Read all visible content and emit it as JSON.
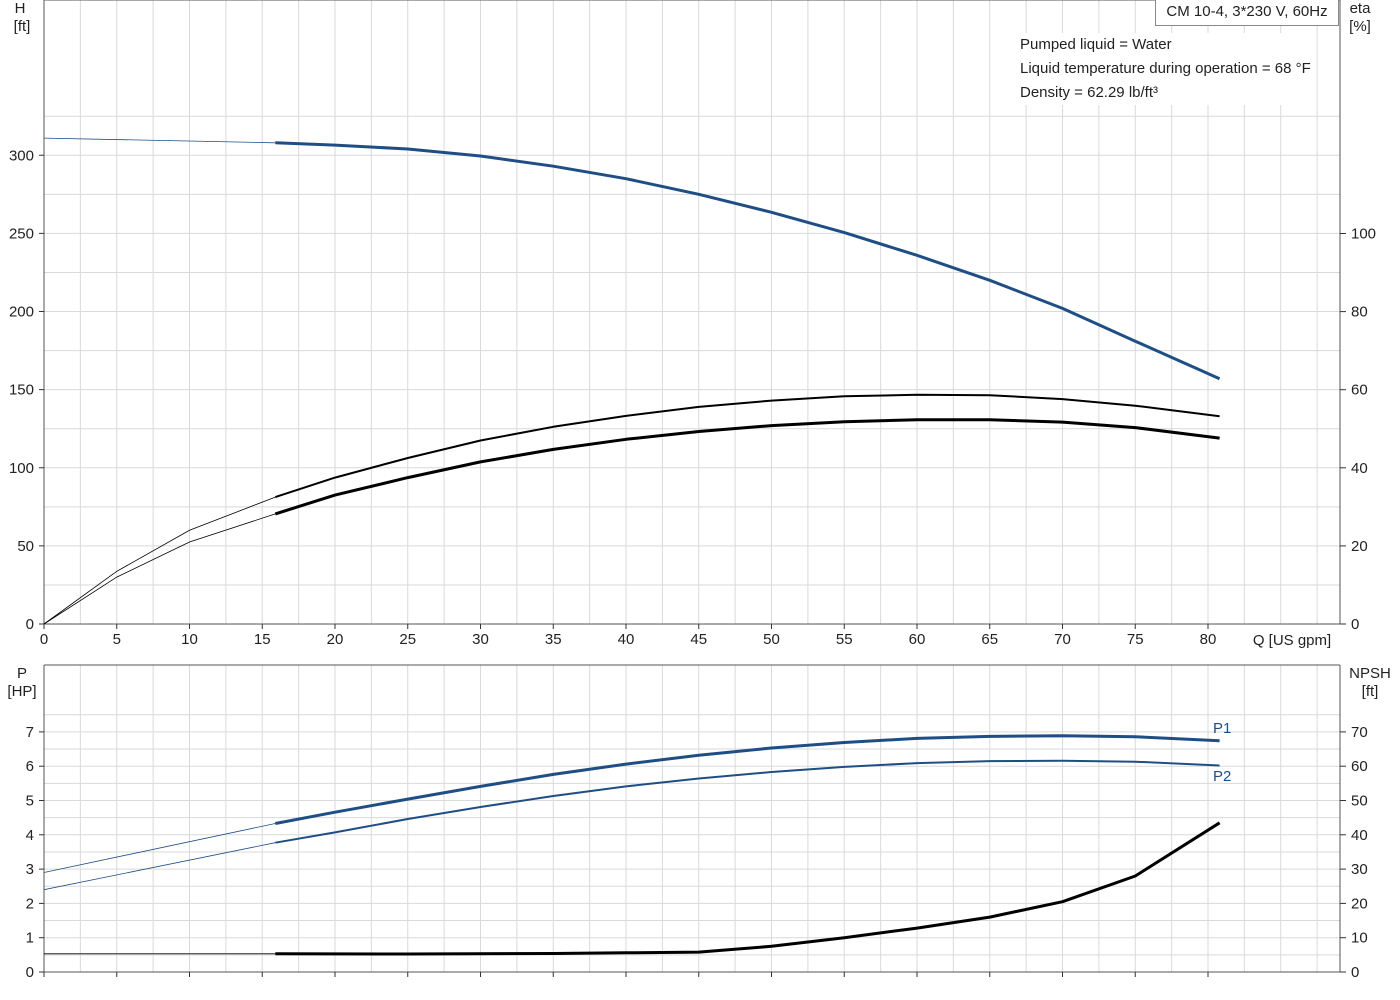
{
  "chart_data": [
    {
      "type": "line",
      "title": "CM 10-4, 3*230 V, 60Hz",
      "annotations": [
        "Pumped liquid = Water",
        "Liquid temperature during operation = 68 °F",
        "Density = 62.29 lb/ft³"
      ],
      "xlabel": "Q [US gpm]",
      "xlim": [
        0,
        89
      ],
      "xticks": [
        0,
        5,
        10,
        15,
        20,
        25,
        30,
        35,
        40,
        45,
        50,
        55,
        60,
        65,
        70,
        75,
        80
      ],
      "y_left": {
        "label": "H",
        "unit": "[ft]",
        "ylim": [
          0,
          400
        ],
        "ticks": [
          0,
          50,
          100,
          150,
          200,
          250,
          300
        ]
      },
      "y_right": {
        "label": "eta",
        "unit": "[%]",
        "ylim": [
          0,
          160
        ],
        "ticks": [
          0,
          20,
          40,
          60,
          80,
          100
        ]
      },
      "grid": true,
      "series": [
        {
          "key": "H",
          "axis": "left",
          "color": "#1f4e85",
          "points": [
            [
              0,
              311
            ],
            [
              15.9,
              308
            ],
            [
              20,
              306.5
            ],
            [
              25,
              304
            ],
            [
              30,
              299.5
            ],
            [
              35,
              293
            ],
            [
              40,
              285
            ],
            [
              45,
              275
            ],
            [
              50,
              263.5
            ],
            [
              55,
              250.5
            ],
            [
              60,
              236
            ],
            [
              65,
              220
            ],
            [
              70,
              202
            ],
            [
              75,
              181
            ],
            [
              80.8,
              157
            ]
          ]
        },
        {
          "key": "eta-upper",
          "axis": "right",
          "color": "#000000",
          "points": [
            [
              0,
              0
            ],
            [
              5,
              13.5
            ],
            [
              10,
              24
            ],
            [
              15.9,
              32.5
            ],
            [
              20,
              37.5
            ],
            [
              25,
              42.5
            ],
            [
              30,
              47
            ],
            [
              35,
              50.5
            ],
            [
              40,
              53.3
            ],
            [
              45,
              55.6
            ],
            [
              50,
              57.2
            ],
            [
              55,
              58.3
            ],
            [
              60,
              58.7
            ],
            [
              65,
              58.6
            ],
            [
              70,
              57.6
            ],
            [
              75,
              55.9
            ],
            [
              80.8,
              53.2
            ]
          ]
        },
        {
          "key": "eta-lower",
          "axis": "right",
          "color": "#000000",
          "points": [
            [
              0,
              0
            ],
            [
              5,
              12
            ],
            [
              10,
              21
            ],
            [
              15.9,
              28.2
            ],
            [
              20,
              33
            ],
            [
              25,
              37.5
            ],
            [
              30,
              41.5
            ],
            [
              35,
              44.7
            ],
            [
              40,
              47.3
            ],
            [
              45,
              49.3
            ],
            [
              50,
              50.8
            ],
            [
              55,
              51.8
            ],
            [
              60,
              52.3
            ],
            [
              65,
              52.3
            ],
            [
              70,
              51.7
            ],
            [
              75,
              50.3
            ],
            [
              80.8,
              47.6
            ]
          ]
        }
      ]
    },
    {
      "type": "line",
      "xlim": [
        0,
        89
      ],
      "xticks": [
        0,
        5,
        10,
        15,
        20,
        25,
        30,
        35,
        40,
        45,
        50,
        55,
        60,
        65,
        70,
        75,
        80
      ],
      "y_left": {
        "label": "P",
        "unit": "[HP]",
        "ylim": [
          0,
          8
        ],
        "ticks": [
          0,
          1,
          2,
          3,
          4,
          5,
          6,
          7
        ]
      },
      "y_right": {
        "label": "NPSH",
        "unit": "[ft]",
        "ylim": [
          0,
          80
        ],
        "ticks": [
          0,
          10,
          20,
          30,
          40,
          50,
          60,
          70
        ]
      },
      "grid": true,
      "series": [
        {
          "name": "P1",
          "key": "P1",
          "axis": "left",
          "color": "#1f4e85",
          "points": [
            [
              0,
              2.9
            ],
            [
              15.9,
              4.33
            ],
            [
              20,
              4.66
            ],
            [
              25,
              5.04
            ],
            [
              30,
              5.41
            ],
            [
              35,
              5.76
            ],
            [
              40,
              6.06
            ],
            [
              45,
              6.32
            ],
            [
              50,
              6.53
            ],
            [
              55,
              6.69
            ],
            [
              60,
              6.81
            ],
            [
              65,
              6.87
            ],
            [
              70,
              6.89
            ],
            [
              75,
              6.86
            ],
            [
              80.8,
              6.74
            ]
          ]
        },
        {
          "name": "P2",
          "key": "P2",
          "axis": "left",
          "color": "#1f4e85",
          "points": [
            [
              0,
              2.4
            ],
            [
              15.9,
              3.77
            ],
            [
              20,
              4.07
            ],
            [
              25,
              4.46
            ],
            [
              30,
              4.81
            ],
            [
              35,
              5.13
            ],
            [
              40,
              5.41
            ],
            [
              45,
              5.64
            ],
            [
              50,
              5.83
            ],
            [
              55,
              5.98
            ],
            [
              60,
              6.09
            ],
            [
              65,
              6.15
            ],
            [
              70,
              6.16
            ],
            [
              75,
              6.13
            ],
            [
              80.8,
              6.02
            ]
          ]
        },
        {
          "key": "NPSH",
          "axis": "right",
          "color": "#000000",
          "points": [
            [
              0,
              5.3
            ],
            [
              15.9,
              5.3
            ],
            [
              25,
              5.25
            ],
            [
              35,
              5.4
            ],
            [
              40,
              5.6
            ],
            [
              45,
              5.8
            ],
            [
              50,
              7.5
            ],
            [
              55,
              10
            ],
            [
              60,
              12.8
            ],
            [
              65,
              16
            ],
            [
              70,
              20.5
            ],
            [
              75,
              28
            ],
            [
              80.8,
              43.5
            ]
          ]
        }
      ]
    }
  ]
}
